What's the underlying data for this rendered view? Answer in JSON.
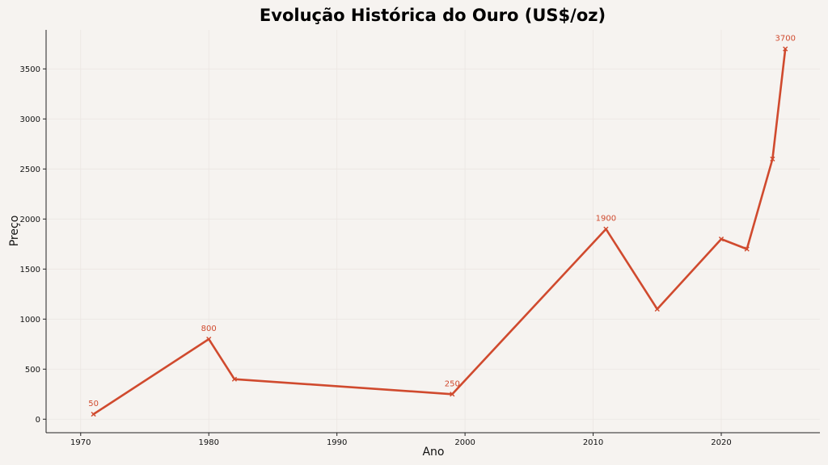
{
  "chart_data": {
    "type": "line",
    "title": "Evolução Histórica do Ouro (US$/oz)",
    "xlabel": "Ano",
    "ylabel": "Preço",
    "xlim": [
      1967.3,
      2027.7
    ],
    "ylim": [
      -135,
      3890
    ],
    "x_ticks": [
      1970,
      1980,
      1990,
      2000,
      2010,
      2020
    ],
    "y_ticks": [
      0,
      500,
      1000,
      1500,
      2000,
      2500,
      3000,
      3500
    ],
    "grid": true,
    "legend": "none",
    "series": [
      {
        "color": "#d04a2e",
        "marker": "x",
        "x": [
          1971,
          1980,
          1982,
          1999,
          2011,
          2015,
          2020,
          2022,
          2024,
          2025
        ],
        "y": [
          50,
          800,
          400,
          250,
          1900,
          1100,
          1800,
          1700,
          2600,
          3700
        ]
      }
    ],
    "annotations": [
      {
        "x": 1971,
        "y": 50,
        "text": "50"
      },
      {
        "x": 1980,
        "y": 800,
        "text": "800"
      },
      {
        "x": 1999,
        "y": 250,
        "text": "250"
      },
      {
        "x": 2011,
        "y": 1900,
        "text": "1900"
      },
      {
        "x": 2025,
        "y": 3700,
        "text": "3700"
      }
    ],
    "colors": {
      "background": "#f6f3f0",
      "line": "#d04a2e",
      "grid": "#ebe6e2",
      "axis": "#222222"
    }
  }
}
